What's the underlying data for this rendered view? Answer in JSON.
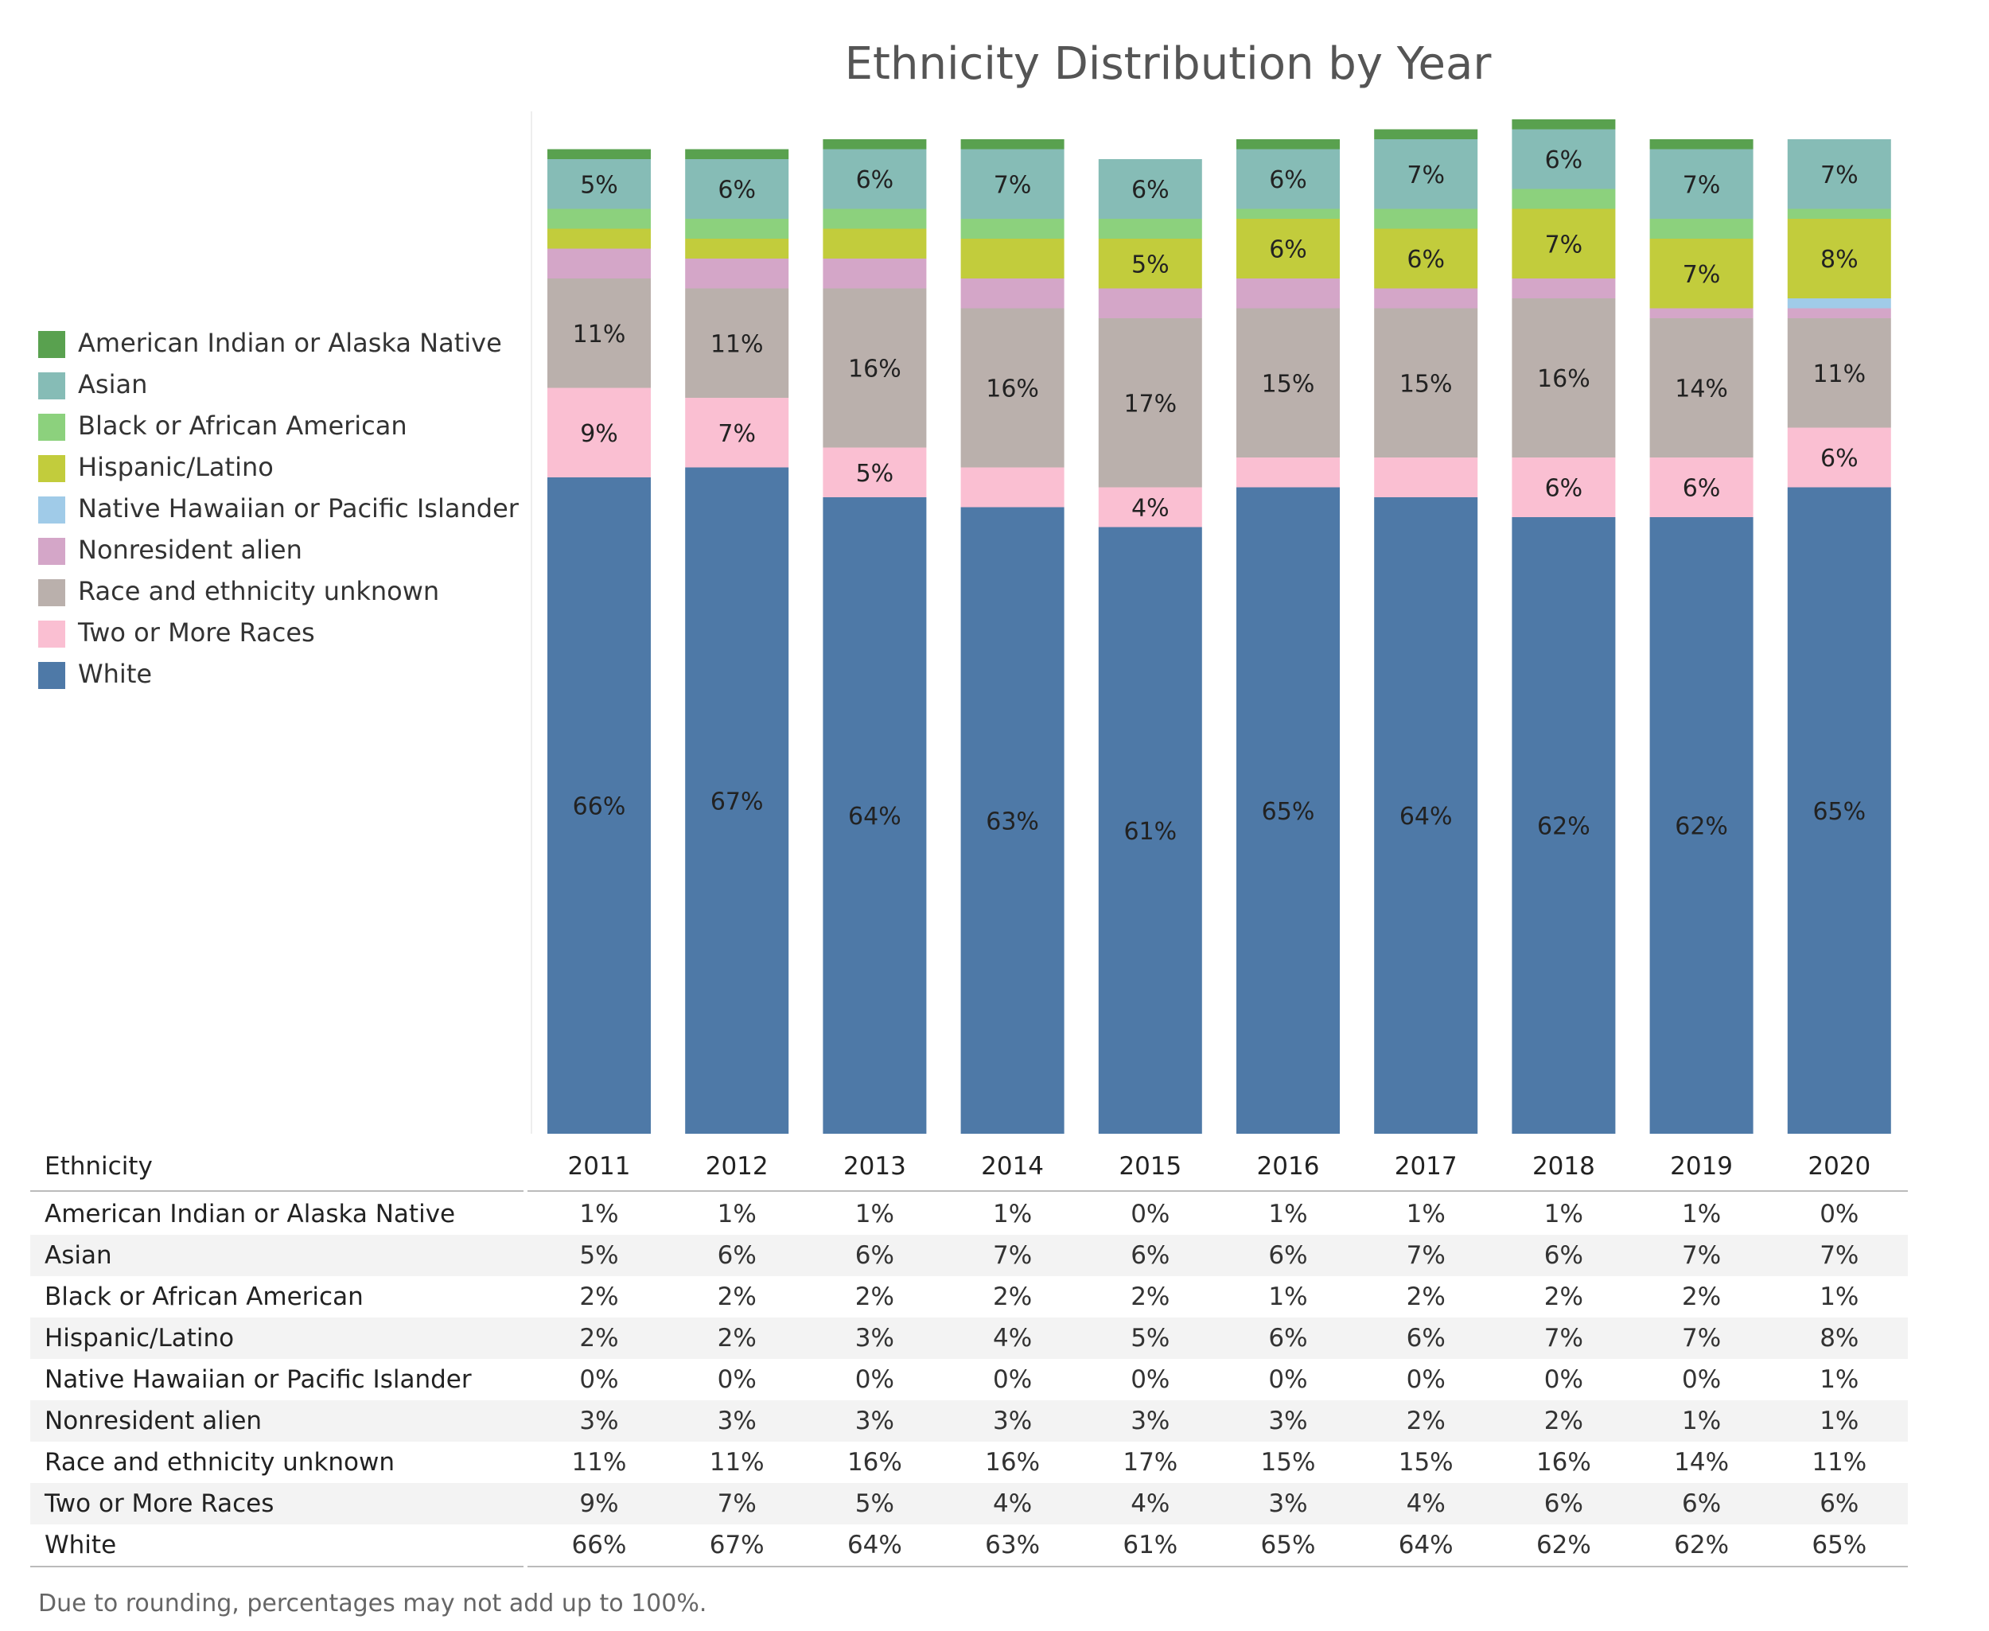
{
  "chart_data": {
    "type": "bar",
    "stacked": true,
    "title": "Ethnicity Distribution by Year",
    "categories": [
      "2011",
      "2012",
      "2013",
      "2014",
      "2015",
      "2016",
      "2017",
      "2018",
      "2019",
      "2020"
    ],
    "series": [
      {
        "name": "White",
        "color": "#4e79a7",
        "values": [
          66,
          67,
          64,
          63,
          61,
          65,
          64,
          62,
          62,
          65
        ]
      },
      {
        "name": "Two or More Races",
        "color": "#fabfd2",
        "values": [
          9,
          7,
          5,
          4,
          4,
          3,
          4,
          6,
          6,
          6
        ]
      },
      {
        "name": "Race and ethnicity unknown",
        "color": "#bab0ac",
        "values": [
          11,
          11,
          16,
          16,
          17,
          15,
          15,
          16,
          14,
          11
        ]
      },
      {
        "name": "Nonresident alien",
        "color": "#d4a6c8",
        "values": [
          3,
          3,
          3,
          3,
          3,
          3,
          2,
          2,
          1,
          1
        ]
      },
      {
        "name": "Native Hawaiian or Pacific Islander",
        "color": "#a0cbe8",
        "values": [
          0,
          0,
          0,
          0,
          0,
          0,
          0,
          0,
          0,
          1
        ]
      },
      {
        "name": "Hispanic/Latino",
        "color": "#c2cc3c",
        "values": [
          2,
          2,
          3,
          4,
          5,
          6,
          6,
          7,
          7,
          8
        ]
      },
      {
        "name": "Black or African American",
        "color": "#8cd17d",
        "values": [
          2,
          2,
          2,
          2,
          2,
          1,
          2,
          2,
          2,
          1
        ]
      },
      {
        "name": "Asian",
        "color": "#86bcb6",
        "values": [
          5,
          6,
          6,
          7,
          6,
          6,
          7,
          6,
          7,
          7
        ]
      },
      {
        "name": "American Indian or Alaska Native",
        "color": "#59a14f",
        "values": [
          1,
          1,
          1,
          1,
          0,
          1,
          1,
          1,
          1,
          0
        ]
      }
    ],
    "legend": {
      "position": "left",
      "entries": [
        "American Indian or Alaska Native",
        "Asian",
        "Black or African American",
        "Hispanic/Latino",
        "Native Hawaiian or Pacific Islander",
        "Nonresident alien",
        "Race and ethnicity unknown",
        "Two or More Races",
        "White"
      ]
    },
    "ylim": [
      0,
      108
    ],
    "grid": false,
    "bar_labels": {
      "White": [
        "66%",
        "67%",
        "64%",
        "63%",
        "61%",
        "65%",
        "64%",
        "62%",
        "62%",
        "65%"
      ],
      "Two or More Races": [
        "9%",
        "7%",
        "5%",
        "",
        "4%",
        "",
        "",
        "6%",
        "6%",
        "6%"
      ],
      "Race and ethnicity unknown": [
        "11%",
        "11%",
        "16%",
        "16%",
        "17%",
        "15%",
        "15%",
        "16%",
        "14%",
        "11%"
      ],
      "Hispanic/Latino": [
        "",
        "",
        "",
        "",
        "5%",
        "6%",
        "6%",
        "7%",
        "7%",
        "8%"
      ],
      "Asian": [
        "5%",
        "6%",
        "6%",
        "7%",
        "6%",
        "6%",
        "7%",
        "6%",
        "7%",
        "7%"
      ]
    }
  },
  "table": {
    "header": "Ethnicity",
    "years": [
      "2011",
      "2012",
      "2013",
      "2014",
      "2015",
      "2016",
      "2017",
      "2018",
      "2019",
      "2020"
    ],
    "rows": [
      {
        "name": "American Indian or Alaska Native",
        "values": [
          "1%",
          "1%",
          "1%",
          "1%",
          "0%",
          "1%",
          "1%",
          "1%",
          "1%",
          "0%"
        ]
      },
      {
        "name": "Asian",
        "values": [
          "5%",
          "6%",
          "6%",
          "7%",
          "6%",
          "6%",
          "7%",
          "6%",
          "7%",
          "7%"
        ]
      },
      {
        "name": "Black or African American",
        "values": [
          "2%",
          "2%",
          "2%",
          "2%",
          "2%",
          "1%",
          "2%",
          "2%",
          "2%",
          "1%"
        ]
      },
      {
        "name": "Hispanic/Latino",
        "values": [
          "2%",
          "2%",
          "3%",
          "4%",
          "5%",
          "6%",
          "6%",
          "7%",
          "7%",
          "8%"
        ]
      },
      {
        "name": "Native Hawaiian or Pacific Islander",
        "values": [
          "0%",
          "0%",
          "0%",
          "0%",
          "0%",
          "0%",
          "0%",
          "0%",
          "0%",
          "1%"
        ]
      },
      {
        "name": "Nonresident alien",
        "values": [
          "3%",
          "3%",
          "3%",
          "3%",
          "3%",
          "3%",
          "2%",
          "2%",
          "1%",
          "1%"
        ]
      },
      {
        "name": "Race and ethnicity unknown",
        "values": [
          "11%",
          "11%",
          "16%",
          "16%",
          "17%",
          "15%",
          "15%",
          "16%",
          "14%",
          "11%"
        ]
      },
      {
        "name": "Two or More Races",
        "values": [
          "9%",
          "7%",
          "5%",
          "4%",
          "4%",
          "3%",
          "4%",
          "6%",
          "6%",
          "6%"
        ]
      },
      {
        "name": "White",
        "values": [
          "66%",
          "67%",
          "64%",
          "63%",
          "61%",
          "65%",
          "64%",
          "62%",
          "62%",
          "65%"
        ]
      }
    ]
  },
  "footnote": "Due to rounding, percentages may not add up to 100%."
}
